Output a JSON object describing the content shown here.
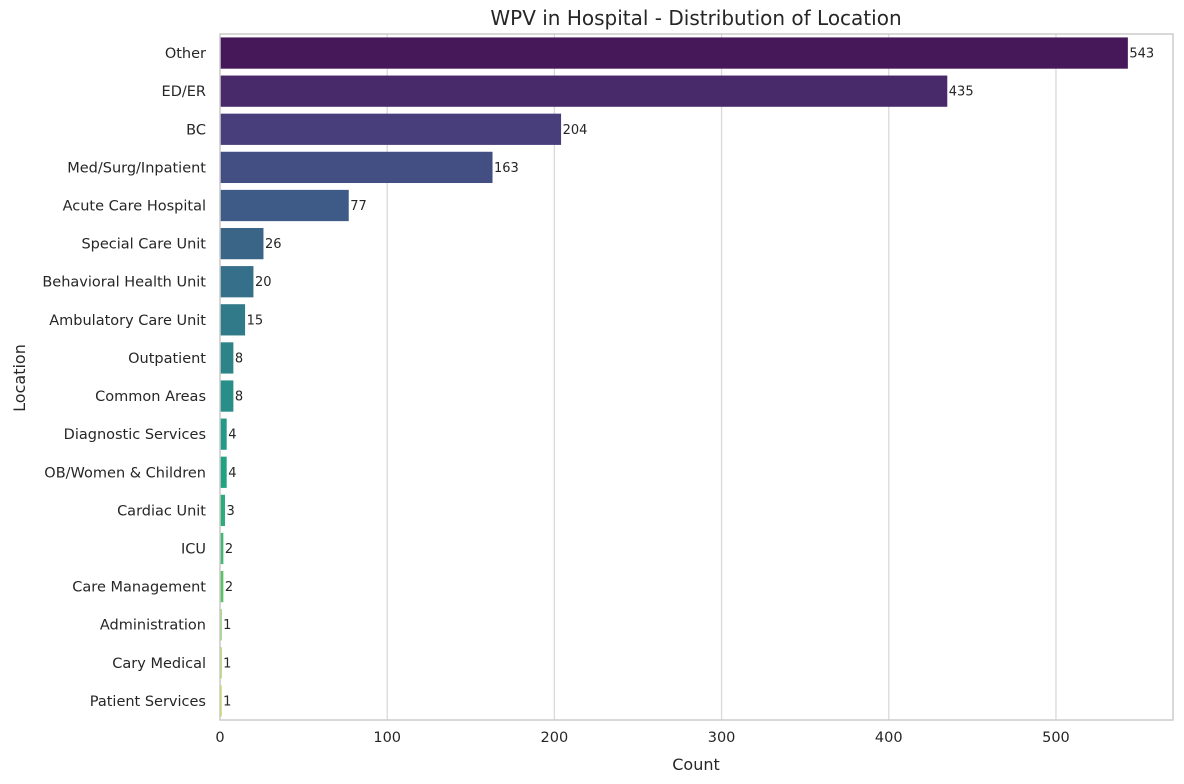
{
  "chart_data": {
    "type": "bar",
    "orientation": "horizontal",
    "title": "WPV in Hospital - Distribution of Location",
    "xlabel": "Count",
    "ylabel": "Location",
    "categories": [
      "Other",
      "ED/ER",
      "BC",
      "Med/Surg/Inpatient",
      "Acute Care Hospital",
      "Special Care Unit",
      "Behavioral Health Unit",
      "Ambulatory Care Unit",
      "Outpatient",
      "Common Areas",
      "Diagnostic Services",
      "OB/Women & Children",
      "Cardiac Unit",
      "ICU",
      "Care Management",
      "Administration",
      "Cary Medical",
      "Patient Services"
    ],
    "values": [
      543,
      435,
      204,
      163,
      77,
      26,
      20,
      15,
      8,
      8,
      4,
      4,
      3,
      2,
      2,
      1,
      1,
      1
    ],
    "xlim": [
      0,
      570
    ],
    "xticks": [
      0,
      100,
      200,
      300,
      400,
      500
    ],
    "grid": "vertical",
    "colormap": "viridis",
    "colors": [
      "#46185a",
      "#482a6b",
      "#483e7c",
      "#434e83",
      "#3e5a87",
      "#3a6587",
      "#356f89",
      "#307a89",
      "#2c8489",
      "#298d88",
      "#259987",
      "#23a283",
      "#2dab7d",
      "#45b773",
      "#5ec166",
      "#7dcb55",
      "#a2d441",
      "#c4dd30"
    ]
  }
}
